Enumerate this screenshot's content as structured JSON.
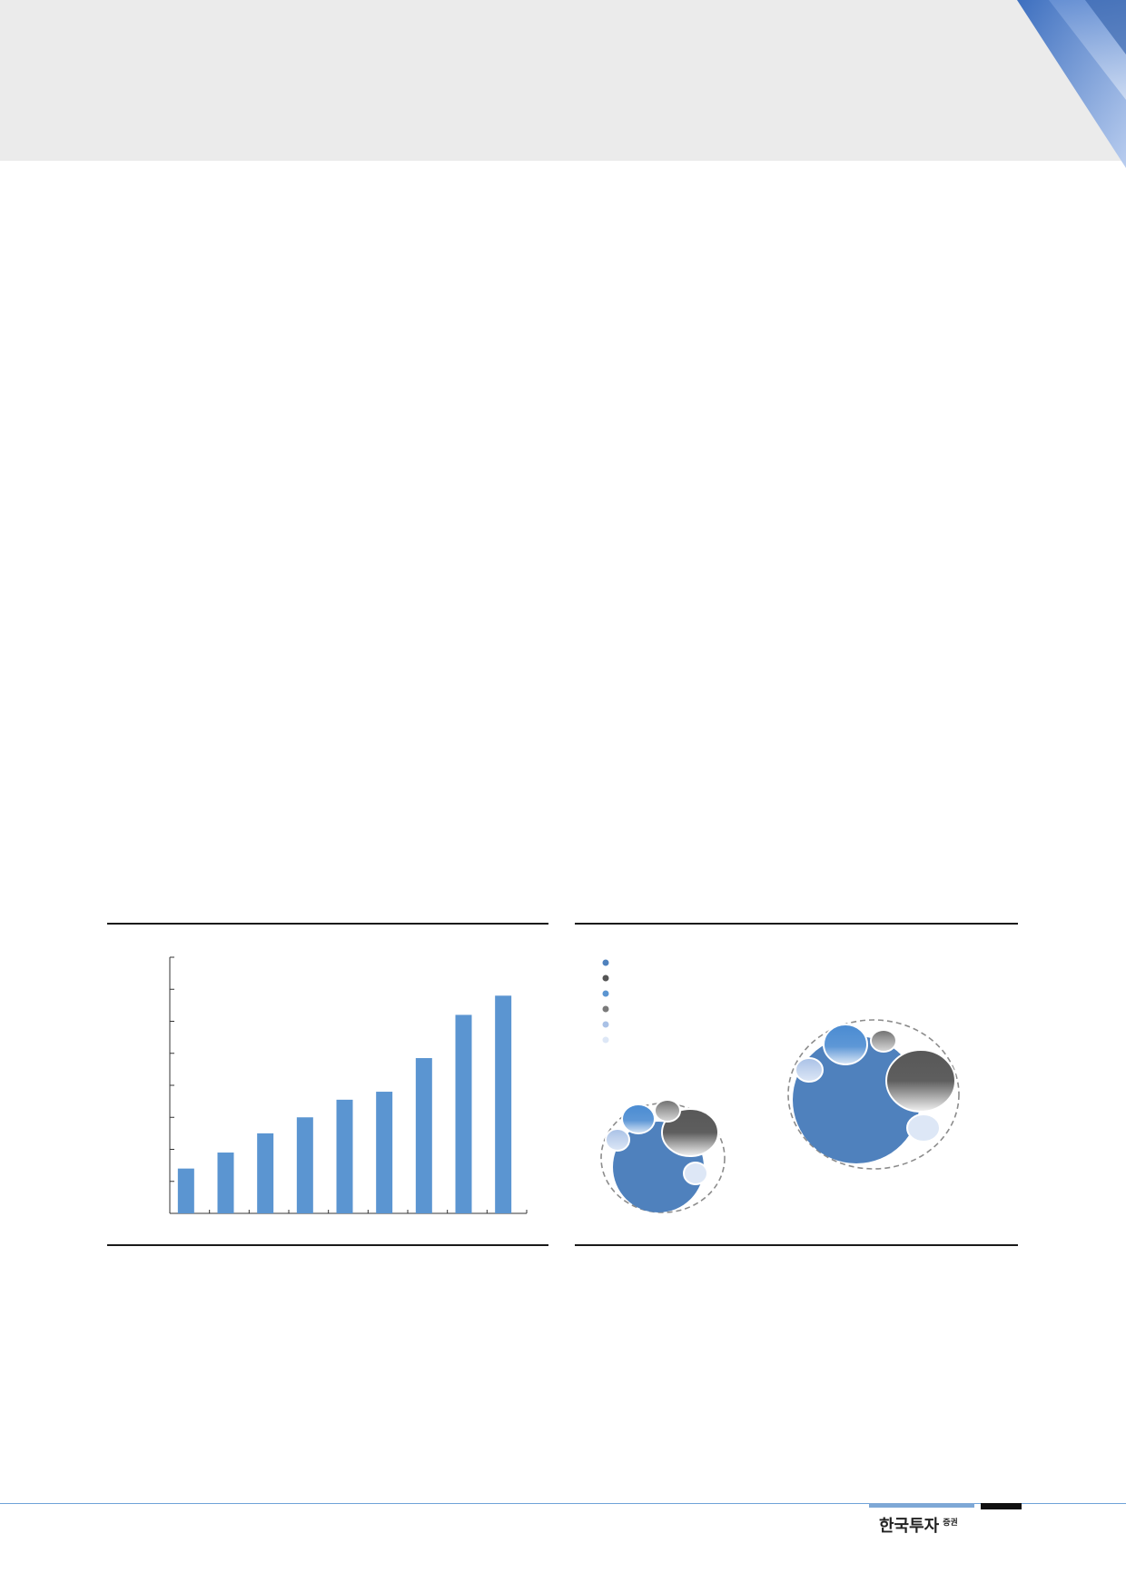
{
  "brand": {
    "name": "한국투자",
    "suffix": "증권"
  },
  "colors": {
    "bar": "#5b95d1",
    "bubble_main": "#4f81bd",
    "bubble_dark": "#555555",
    "rule": "#1a1a1a",
    "footer_blue": "#7ea8d6"
  },
  "chart_data": [
    {
      "type": "bar",
      "categories": [
        "",
        "",
        "",
        "",
        "",
        "",
        "",
        "",
        ""
      ],
      "values": [
        1.4,
        1.9,
        2.5,
        3.0,
        3.55,
        3.8,
        4.85,
        6.2,
        6.8
      ],
      "ylim": [
        0,
        8
      ],
      "title": "",
      "xlabel": "",
      "ylabel": "",
      "grid": false
    },
    {
      "type": "bubble",
      "legend": {
        "placement": "top-left",
        "entries": 6
      },
      "groups": [
        {
          "size": "small",
          "bubbles": 6
        },
        {
          "size": "large",
          "bubbles": 6
        }
      ]
    }
  ]
}
